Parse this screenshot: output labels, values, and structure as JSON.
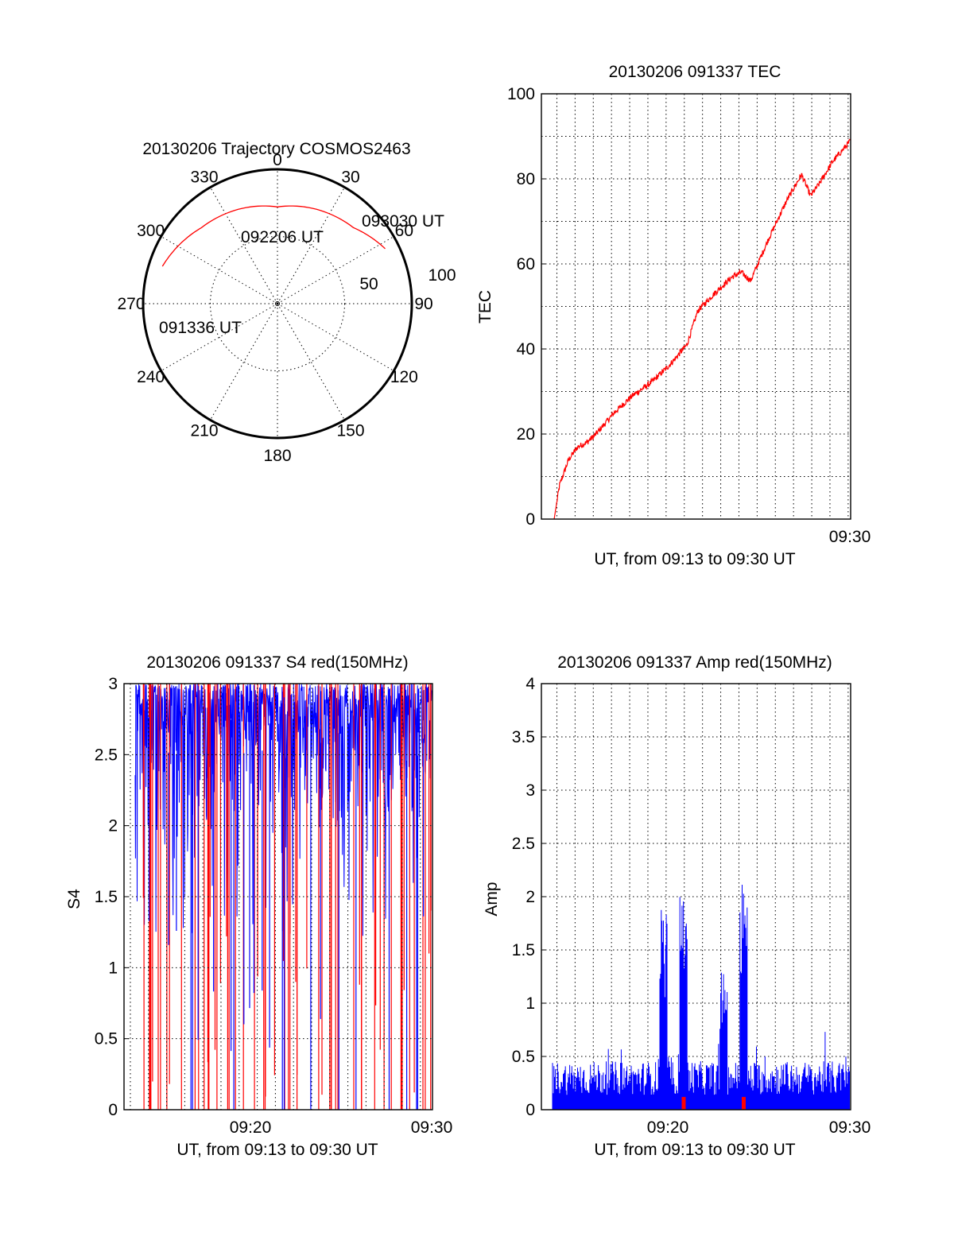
{
  "chart_data": [
    {
      "type": "polar",
      "title": "20130206 Trajectory COSMOS2463",
      "angle_labels": [
        "0",
        "30",
        "60",
        "90",
        "120",
        "150",
        "180",
        "210",
        "240",
        "270",
        "300",
        "330"
      ],
      "radial_labels": [
        "50",
        "100"
      ],
      "radial_range": [
        0,
        100
      ],
      "grid": true,
      "annotations": [
        "093030 UT",
        "092206 UT",
        "091336 UT"
      ],
      "colors": {
        "trajectory": "#ff0000",
        "frame": "#000000"
      },
      "series": [
        {
          "points_deg": [
            [
              63,
              90
            ],
            [
              45,
              80
            ],
            [
              0,
              72
            ],
            [
              -45,
              80
            ],
            [
              -72,
              90
            ]
          ]
        }
      ]
    },
    {
      "type": "line",
      "title": "20130206 091337 TEC",
      "xlabel": "UT, from 09:13 to 09:30 UT",
      "ylabel": "TEC",
      "x_tick_labels": [
        "09:30"
      ],
      "y_tick_labels": [
        "0",
        "20",
        "40",
        "60",
        "80",
        "100"
      ],
      "xlim": [
        9.2167,
        9.5
      ],
      "ylim": [
        0,
        100
      ],
      "grid": true,
      "colors": {
        "line": "#ff0000"
      },
      "series": [
        {
          "x_minutes_from_0913": [
            0.7,
            1.0,
            1.5,
            2.0,
            2.5,
            3.0,
            4.0,
            5.0,
            6.0,
            7.0,
            8.0,
            8.6,
            9.5,
            10.5,
            11.0,
            11.5,
            12.5,
            13.5,
            14.3,
            14.8,
            15.3,
            16.0,
            17.0
          ],
          "y": [
            0,
            8,
            14,
            17,
            18,
            20,
            25,
            29,
            32,
            36,
            41,
            49,
            53,
            57,
            58,
            56,
            66,
            75,
            81,
            76,
            79,
            84,
            89
          ]
        }
      ]
    },
    {
      "type": "line",
      "title": "20130206 091337 S4 red(150MHz)",
      "xlabel": "UT, from 09:13 to 09:30 UT",
      "ylabel": "S4",
      "x_tick_labels": [
        "09:20",
        "09:30"
      ],
      "y_tick_labels": [
        "0",
        "0.5",
        "1",
        "1.5",
        "2",
        "2.5",
        "3"
      ],
      "xlim": [
        9.2167,
        9.5
      ],
      "ylim": [
        0,
        3
      ],
      "grid": true,
      "colors": {
        "red_channel": "#ff0000",
        "blue_channel": "#0000ff"
      },
      "notes": "Dense S4 scintillation traces saturating at 3, frequent drops to 0."
    },
    {
      "type": "bar",
      "title": "20130206 091337 Amp red(150MHz)",
      "xlabel": "UT, from 09:13 to 09:30 UT",
      "ylabel": "Amp",
      "x_tick_labels": [
        "09:20",
        "09:30"
      ],
      "y_tick_labels": [
        "0",
        "0.5",
        "1",
        "1.5",
        "2",
        "2.5",
        "3",
        "3.5",
        "4"
      ],
      "xlim": [
        9.2167,
        9.5
      ],
      "ylim": [
        0,
        4
      ],
      "grid": true,
      "colors": {
        "red_channel": "#ff0000",
        "blue_channel": "#0000ff"
      },
      "peaks": [
        {
          "minute": 6.7,
          "value": 1.9
        },
        {
          "minute": 7.8,
          "value": 2.27
        },
        {
          "minute": 10.0,
          "value": 1.3
        },
        {
          "minute": 11.1,
          "value": 2.33
        }
      ],
      "baseline": 0.35
    }
  ]
}
